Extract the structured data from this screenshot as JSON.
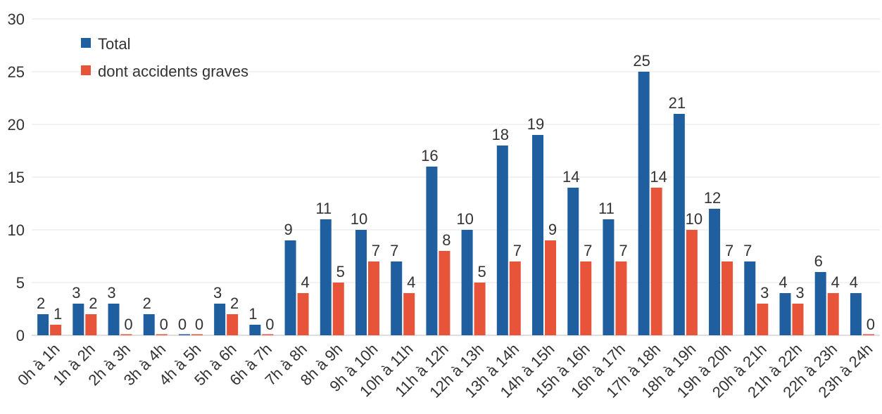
{
  "chart_data": {
    "type": "bar",
    "categories": [
      "0h à 1h",
      "1h à 2h",
      "2h à 3h",
      "3h à 4h",
      "4h à 5h",
      "5h à 6h",
      "6h à 7h",
      "7h à 8h",
      "8h à 9h",
      "9h à 10h",
      "10h à 11h",
      "11h à 12h",
      "12h à 13h",
      "13h à 14h",
      "14h à 15h",
      "15h à 16h",
      "16h à 17h",
      "17h à 18h",
      "18h à 19h",
      "19h à 20h",
      "20h à 21h",
      "21h à 22h",
      "22h à 23h",
      "23h à 24h"
    ],
    "series": [
      {
        "name": "Total",
        "color": "#1f5fa0",
        "values": [
          2,
          3,
          3,
          2,
          0,
          3,
          1,
          9,
          11,
          10,
          7,
          16,
          10,
          18,
          19,
          14,
          11,
          25,
          21,
          12,
          7,
          4,
          6,
          4
        ]
      },
      {
        "name": "dont accidents graves",
        "color": "#e8543a",
        "values": [
          1,
          2,
          0,
          0,
          0,
          2,
          0,
          4,
          5,
          7,
          4,
          8,
          5,
          7,
          9,
          7,
          7,
          14,
          10,
          7,
          3,
          3,
          4,
          0
        ]
      }
    ],
    "y_ticks": [
      0,
      5,
      10,
      15,
      20,
      25,
      30
    ],
    "ylim": [
      0,
      30
    ],
    "grid": true,
    "legend": "top-left",
    "data_labels": true
  }
}
